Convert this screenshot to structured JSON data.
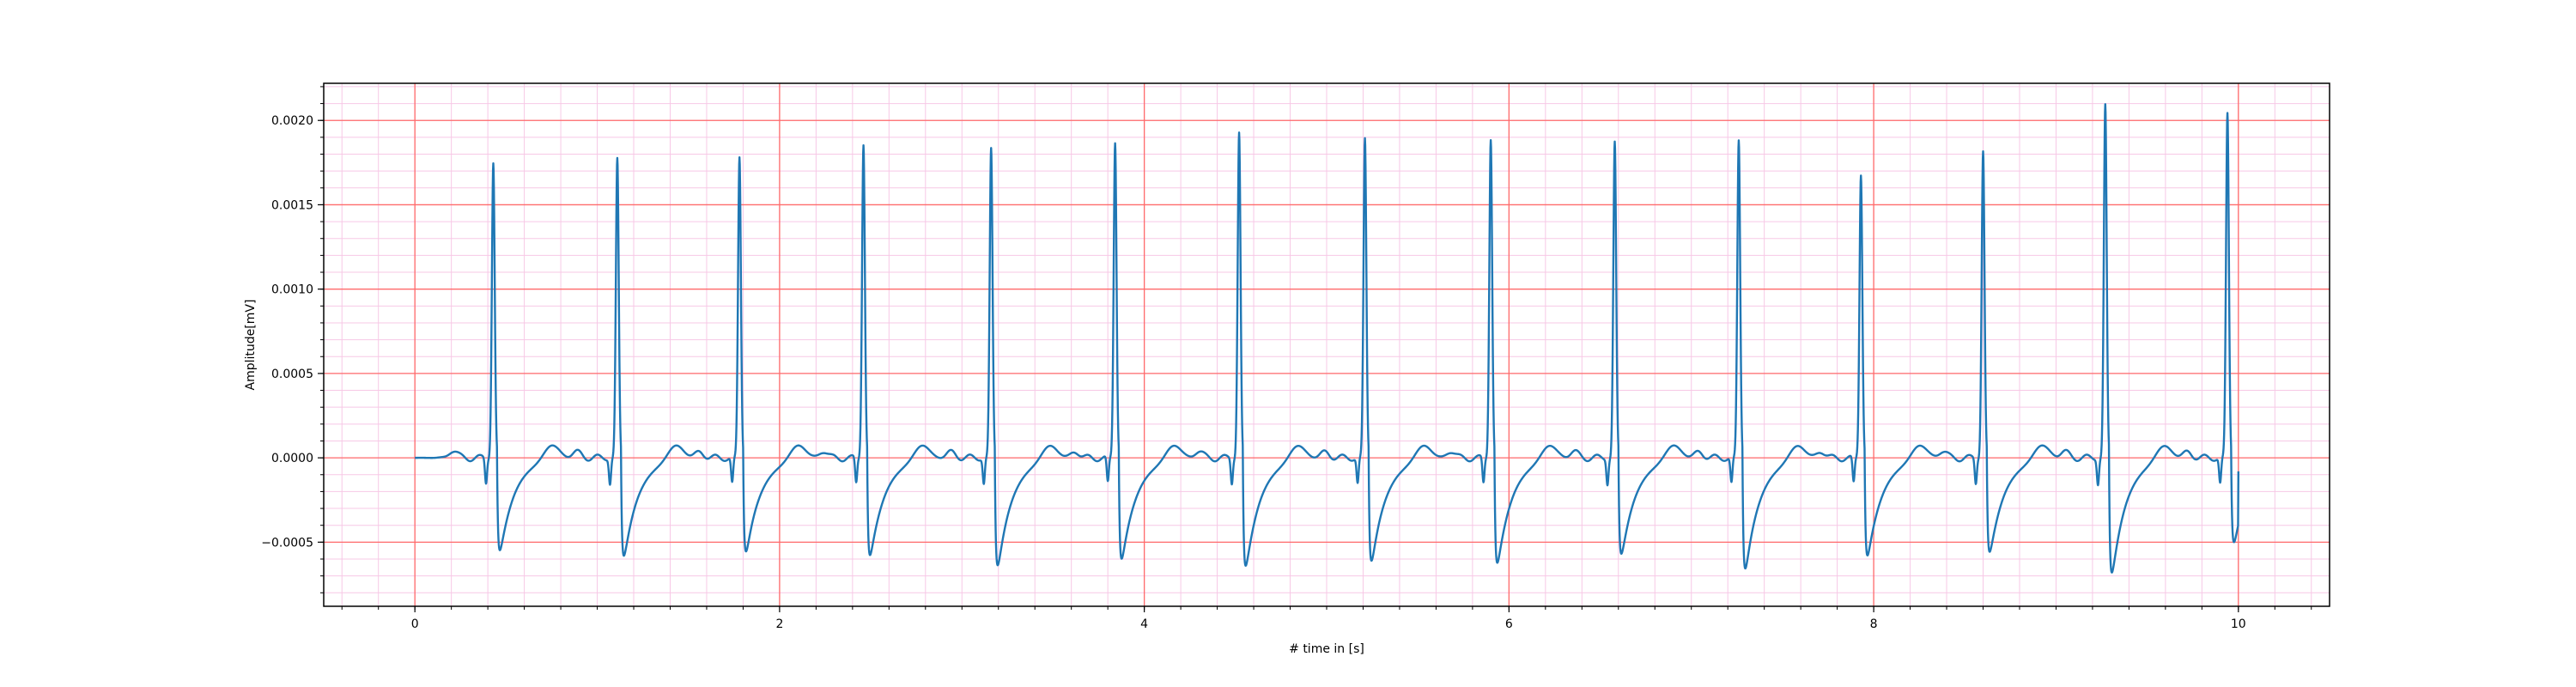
{
  "chart_data": {
    "type": "line",
    "title": "",
    "xlabel": "# time in [s]",
    "ylabel": "Amplitude[mV]",
    "xlim": [
      -0.5,
      10.5
    ],
    "ylim": [
      -0.00088,
      0.00222
    ],
    "x_ticks": [
      0,
      2,
      4,
      6,
      8,
      10
    ],
    "x_tick_labels": [
      "0",
      "2",
      "4",
      "6",
      "8",
      "10"
    ],
    "y_ticks": [
      -0.0005,
      0.0,
      0.0005,
      0.001,
      0.0015,
      0.002
    ],
    "y_tick_labels": [
      "−0.0005",
      "0.0000",
      "0.0005",
      "0.0010",
      "0.0015",
      "0.0020"
    ],
    "grid": "major and minor",
    "colors": {
      "line": "#1f77b4",
      "major_grid": "#ff6b6b",
      "minor_grid": "#f7c8e6"
    },
    "series": [
      {
        "name": "",
        "r_peak_times": [
          0.43,
          1.11,
          1.78,
          2.46,
          3.16,
          3.84,
          4.52,
          5.21,
          5.9,
          6.58,
          7.26,
          7.93,
          8.6,
          9.27,
          9.94
        ],
        "r_peak_amplitudes": [
          0.00175,
          0.00177,
          0.00178,
          0.00186,
          0.00183,
          0.00187,
          0.00193,
          0.00189,
          0.00189,
          0.00187,
          0.00188,
          0.00168,
          0.00182,
          0.00209,
          0.00204
        ],
        "s_wave_amplitudes": [
          -0.0006,
          -0.00063,
          -0.0006,
          -0.00063,
          -0.00069,
          -0.00065,
          -0.0007,
          -0.00066,
          -0.00068,
          -0.00062,
          -0.00071,
          -0.00063,
          -0.00061,
          -0.00074,
          -0.00054
        ],
        "baseline": 0.0,
        "t_start": 0.0,
        "t_end": 10.0,
        "end_value": -8e-05
      }
    ]
  }
}
